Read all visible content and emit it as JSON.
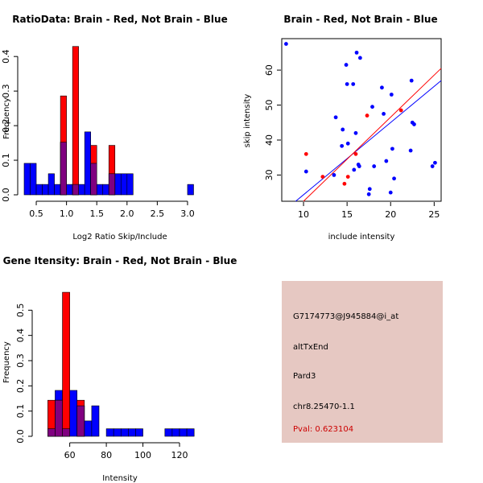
{
  "chart_data": [
    {
      "type": "bar",
      "title": "RatioData: Brain - Red, Not Brain - Blue",
      "xlabel": "Log2 Ratio Skip/Include",
      "ylabel": "Frequency",
      "xlim": [
        0.3,
        3.2
      ],
      "ylim": [
        0,
        0.44
      ],
      "xticks": [
        "0.5",
        "1.0",
        "1.5",
        "2.0",
        "2.5",
        "3.0"
      ],
      "yticks": [
        "0.0",
        "0.1",
        "0.2",
        "0.3",
        "0.4"
      ],
      "bin_width": 0.1,
      "series": [
        {
          "name": "Not Brain",
          "color": "#0000ff",
          "bins": [
            {
              "x0": 0.3,
              "v": 0.091
            },
            {
              "x0": 0.4,
              "v": 0.091
            },
            {
              "x0": 0.5,
              "v": 0.03
            },
            {
              "x0": 0.6,
              "v": 0.03
            },
            {
              "x0": 0.7,
              "v": 0.061
            },
            {
              "x0": 0.8,
              "v": 0.03
            },
            {
              "x0": 0.9,
              "v": 0.152
            },
            {
              "x0": 1.0,
              "v": 0.03
            },
            {
              "x0": 1.1,
              "v": 0.03
            },
            {
              "x0": 1.2,
              "v": 0.03
            },
            {
              "x0": 1.3,
              "v": 0.182
            },
            {
              "x0": 1.4,
              "v": 0.091
            },
            {
              "x0": 1.5,
              "v": 0.03
            },
            {
              "x0": 1.6,
              "v": 0.03
            },
            {
              "x0": 1.7,
              "v": 0.061
            },
            {
              "x0": 1.8,
              "v": 0.061
            },
            {
              "x0": 1.9,
              "v": 0.061
            },
            {
              "x0": 2.0,
              "v": 0.061
            },
            {
              "x0": 3.0,
              "v": 0.03
            }
          ]
        },
        {
          "name": "Brain",
          "color": "#ff0000",
          "bins": [
            {
              "x0": 0.9,
              "v": 0.286
            },
            {
              "x0": 1.1,
              "v": 0.429
            },
            {
              "x0": 1.4,
              "v": 0.143
            },
            {
              "x0": 1.7,
              "v": 0.143
            }
          ]
        }
      ]
    },
    {
      "type": "scatter",
      "title": "Brain - Red, Not Brain - Blue",
      "xlabel": "include intensity",
      "ylabel": "skip intensity",
      "xlim": [
        7.5,
        25.8
      ],
      "ylim": [
        22.5,
        69
      ],
      "xticks": [
        "10",
        "15",
        "20",
        "25"
      ],
      "yticks": [
        "30",
        "40",
        "50",
        "60"
      ],
      "series": [
        {
          "name": "Not Brain",
          "color": "#0000ff",
          "points": [
            [
              8,
              67.5
            ],
            [
              10.3,
              31
            ],
            [
              13.5,
              30
            ],
            [
              13.7,
              46.5
            ],
            [
              14.4,
              38.3
            ],
            [
              14.5,
              43
            ],
            [
              14.9,
              61.5
            ],
            [
              15,
              56
            ],
            [
              15.1,
              39
            ],
            [
              15.7,
              56
            ],
            [
              15.8,
              31.5
            ],
            [
              16,
              42
            ],
            [
              16.1,
              65
            ],
            [
              16.3,
              33
            ],
            [
              16.4,
              32.5
            ],
            [
              16.5,
              63.5
            ],
            [
              17.5,
              24.5
            ],
            [
              17.6,
              26
            ],
            [
              17.9,
              49.5
            ],
            [
              18.1,
              32.5
            ],
            [
              19,
              55
            ],
            [
              19.2,
              47.5
            ],
            [
              19.5,
              34
            ],
            [
              20,
              25
            ],
            [
              20.1,
              53
            ],
            [
              20.2,
              37.5
            ],
            [
              20.4,
              29
            ],
            [
              22.3,
              37
            ],
            [
              22.4,
              57
            ],
            [
              22.5,
              45
            ],
            [
              22.7,
              44.5
            ],
            [
              24.8,
              32.5
            ],
            [
              25.1,
              33.5
            ]
          ],
          "fit_line": [
            [
              9.1,
              22.5
            ],
            [
              25.8,
              57
            ]
          ]
        },
        {
          "name": "Brain",
          "color": "#ff0000",
          "points": [
            [
              10.3,
              36
            ],
            [
              12.2,
              29.5
            ],
            [
              14.7,
              27.5
            ],
            [
              15.1,
              29.5
            ],
            [
              16,
              36
            ],
            [
              17.3,
              47
            ],
            [
              21.2,
              48.5
            ]
          ],
          "fit_line": [
            [
              10,
              22.5
            ],
            [
              25.8,
              60.5
            ]
          ]
        }
      ]
    },
    {
      "type": "bar",
      "title": "Gene Itensity: Brain - Red, Not Brain - Blue",
      "xlabel": "Intensity",
      "ylabel": "Frequency",
      "xlim": [
        43,
        131
      ],
      "ylim": [
        0,
        0.6
      ],
      "xticks": [
        "60",
        "80",
        "100",
        "120"
      ],
      "yticks": [
        "0.0",
        "0.1",
        "0.2",
        "0.3",
        "0.4",
        "0.5"
      ],
      "bin_width": 4,
      "series": [
        {
          "name": "Not Brain",
          "color": "#0000ff",
          "bins": [
            {
              "x0": 48,
              "v": 0.03
            },
            {
              "x0": 52,
              "v": 0.182
            },
            {
              "x0": 56,
              "v": 0.03
            },
            {
              "x0": 60,
              "v": 0.182
            },
            {
              "x0": 64,
              "v": 0.121
            },
            {
              "x0": 68,
              "v": 0.061
            },
            {
              "x0": 72,
              "v": 0.121
            },
            {
              "x0": 80,
              "v": 0.03
            },
            {
              "x0": 84,
              "v": 0.03
            },
            {
              "x0": 88,
              "v": 0.03
            },
            {
              "x0": 92,
              "v": 0.03
            },
            {
              "x0": 96,
              "v": 0.03
            },
            {
              "x0": 112,
              "v": 0.03
            },
            {
              "x0": 116,
              "v": 0.03
            },
            {
              "x0": 120,
              "v": 0.03
            },
            {
              "x0": 124,
              "v": 0.03
            }
          ]
        },
        {
          "name": "Brain",
          "color": "#ff0000",
          "bins": [
            {
              "x0": 48,
              "v": 0.143
            },
            {
              "x0": 52,
              "v": 0.143
            },
            {
              "x0": 56,
              "v": 0.571
            },
            {
              "x0": 64,
              "v": 0.143
            }
          ]
        }
      ]
    }
  ],
  "info": {
    "probe": "G7174773@J945884@i_at",
    "event": "altTxEnd",
    "gene": "Pard3",
    "location": "chr8.25470-1.1",
    "pval": "Pval: 0.623104"
  },
  "colors": {
    "overlap": "#800080",
    "info_bg": "#e6c8c2",
    "pval": "#cc0000"
  }
}
